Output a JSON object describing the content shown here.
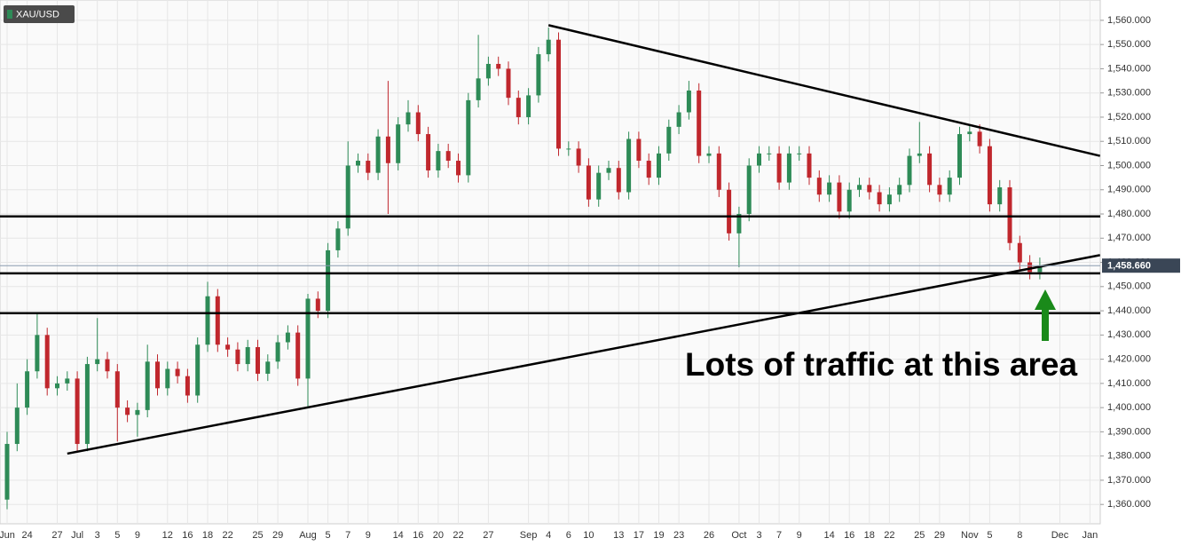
{
  "chart_data": {
    "type": "candlestick",
    "symbol": "XAU/USD",
    "annotation": "Lots of traffic at this area",
    "last_price": 1458.66,
    "last_price_label": "1,458.660",
    "up_color": "#2e8b57",
    "down_color": "#c0272d",
    "grid": true,
    "ylim": [
      1352,
      1568.4
    ],
    "yticks": [
      {
        "value": 1360,
        "label": "1,360.000"
      },
      {
        "value": 1370,
        "label": "1,370.000"
      },
      {
        "value": 1380,
        "label": "1,380.000"
      },
      {
        "value": 1390,
        "label": "1,390.000"
      },
      {
        "value": 1400,
        "label": "1,400.000"
      },
      {
        "value": 1410,
        "label": "1,410.000"
      },
      {
        "value": 1420,
        "label": "1,420.000"
      },
      {
        "value": 1430,
        "label": "1,430.000"
      },
      {
        "value": 1440,
        "label": "1,440.000"
      },
      {
        "value": 1450,
        "label": "1,450.000"
      },
      {
        "value": 1460,
        "label": "1,460.000"
      },
      {
        "value": 1470,
        "label": "1,470.000"
      },
      {
        "value": 1480,
        "label": "1,480.000"
      },
      {
        "value": 1490,
        "label": "1,490.000"
      },
      {
        "value": 1500,
        "label": "1,500.000"
      },
      {
        "value": 1510,
        "label": "1,510.000"
      },
      {
        "value": 1520,
        "label": "1,520.000"
      },
      {
        "value": 1530,
        "label": "1,530.000"
      },
      {
        "value": 1540,
        "label": "1,540.000"
      },
      {
        "value": 1550,
        "label": "1,550.000"
      },
      {
        "value": 1560,
        "label": "1,560.000"
      }
    ],
    "categories": [
      "Jun",
      null,
      "24",
      null,
      null,
      "27",
      null,
      "Jul",
      null,
      "3",
      null,
      "5",
      null,
      "9",
      null,
      null,
      "12",
      null,
      "16",
      null,
      "18",
      null,
      "22",
      null,
      null,
      "25",
      null,
      "29",
      null,
      null,
      "Aug",
      null,
      "5",
      null,
      "7",
      null,
      "9",
      null,
      null,
      "14",
      null,
      "16",
      null,
      "20",
      null,
      "22",
      null,
      null,
      "27",
      null,
      null,
      null,
      "Sep",
      null,
      "4",
      null,
      "6",
      null,
      "10",
      null,
      null,
      "13",
      null,
      "17",
      null,
      "19",
      null,
      "23",
      null,
      null,
      "26",
      null,
      null,
      "Oct",
      null,
      "3",
      null,
      "7",
      null,
      "9",
      null,
      null,
      "14",
      null,
      "16",
      null,
      "18",
      null,
      "22",
      null,
      null,
      "25",
      null,
      "29",
      null,
      null,
      "Nov",
      null,
      "5",
      null,
      null,
      "8",
      null,
      null,
      null,
      "Dec",
      null,
      null,
      "Jan"
    ],
    "open": [
      1362,
      1385,
      1400,
      1415,
      1430,
      1408,
      1410,
      1412,
      1385,
      1418,
      1420,
      1415,
      1400,
      1397,
      1399,
      1419,
      1408,
      1416,
      1413,
      1405,
      1426,
      1446,
      1426,
      1424,
      1418,
      1425,
      1414,
      1419,
      1427,
      1431,
      1412,
      1445,
      1440,
      1465,
      1474,
      1500,
      1502,
      1497,
      1512,
      1501,
      1517,
      1522,
      1513,
      1498,
      1506,
      1502,
      1496,
      1527,
      1536,
      1542,
      1540,
      1528,
      1520,
      1529,
      1546,
      1552,
      1507,
      1507,
      1500,
      1486,
      1497,
      1499,
      1489,
      1511,
      1502,
      1495,
      1505,
      1516,
      1522,
      1531,
      1504,
      1505,
      1490,
      1472,
      1480,
      1500,
      1505,
      1505,
      1493,
      1505,
      1505,
      1495,
      1488,
      1493,
      1481,
      1490,
      1492,
      1489,
      1484,
      1488,
      1492,
      1504,
      1505,
      1492,
      1488,
      1495,
      1513,
      1514,
      1508,
      1484,
      1491,
      1468,
      1460,
      1456,
      null,
      null,
      null,
      null,
      null
    ],
    "high": [
      1390,
      1410,
      1420,
      1439,
      1433,
      1413,
      1415,
      1415,
      1421,
      1437,
      1423,
      1418,
      1403,
      1402,
      1426,
      1422,
      1419,
      1419,
      1416,
      1429,
      1452,
      1449,
      1429,
      1427,
      1428,
      1428,
      1422,
      1430,
      1434,
      1434,
      1447,
      1448,
      1468,
      1477,
      1510,
      1505,
      1505,
      1515,
      1535,
      1520,
      1527,
      1525,
      1516,
      1509,
      1509,
      1505,
      1530,
      1554,
      1545,
      1545,
      1543,
      1531,
      1532,
      1549,
      1557,
      1555,
      1510,
      1510,
      1503,
      1500,
      1502,
      1502,
      1514,
      1514,
      1505,
      1508,
      1519,
      1525,
      1535,
      1534,
      1508,
      1508,
      1493,
      1483,
      1503,
      1508,
      1508,
      1508,
      1508,
      1508,
      1508,
      1498,
      1496,
      1496,
      1493,
      1495,
      1495,
      1492,
      1491,
      1495,
      1507,
      1518,
      1508,
      1495,
      1498,
      1516,
      1517,
      1517,
      1511,
      1494,
      1494,
      1471,
      1463,
      1462,
      null,
      null,
      null,
      null,
      null
    ],
    "low": [
      1358,
      1382,
      1397,
      1412,
      1405,
      1405,
      1407,
      1382,
      1382,
      1415,
      1412,
      1386,
      1394,
      1388,
      1396,
      1405,
      1405,
      1410,
      1402,
      1402,
      1423,
      1423,
      1421,
      1415,
      1415,
      1411,
      1411,
      1416,
      1424,
      1409,
      1400,
      1437,
      1437,
      1462,
      1471,
      1497,
      1494,
      1494,
      1480,
      1498,
      1514,
      1510,
      1495,
      1495,
      1499,
      1493,
      1493,
      1524,
      1533,
      1537,
      1525,
      1517,
      1517,
      1526,
      1543,
      1504,
      1504,
      1497,
      1483,
      1483,
      1494,
      1486,
      1486,
      1499,
      1492,
      1492,
      1502,
      1513,
      1519,
      1501,
      1501,
      1487,
      1469,
      1458,
      1477,
      1497,
      1502,
      1490,
      1490,
      1502,
      1492,
      1485,
      1485,
      1478,
      1478,
      1487,
      1486,
      1481,
      1481,
      1485,
      1489,
      1501,
      1489,
      1485,
      1485,
      1492,
      1510,
      1505,
      1481,
      1481,
      1465,
      1457,
      1453,
      1453,
      null,
      null,
      null,
      null,
      null
    ],
    "close": [
      1385,
      1400,
      1415,
      1430,
      1408,
      1410,
      1412,
      1385,
      1418,
      1420,
      1415,
      1400,
      1397,
      1399,
      1419,
      1408,
      1416,
      1413,
      1405,
      1426,
      1446,
      1426,
      1424,
      1418,
      1425,
      1414,
      1419,
      1427,
      1431,
      1412,
      1445,
      1440,
      1465,
      1474,
      1500,
      1502,
      1497,
      1512,
      1501,
      1517,
      1522,
      1513,
      1498,
      1506,
      1502,
      1496,
      1527,
      1536,
      1542,
      1540,
      1528,
      1520,
      1529,
      1546,
      1552,
      1507,
      1507,
      1500,
      1486,
      1497,
      1499,
      1489,
      1511,
      1502,
      1495,
      1505,
      1516,
      1522,
      1531,
      1504,
      1505,
      1490,
      1472,
      1480,
      1500,
      1505,
      1505,
      1493,
      1505,
      1505,
      1495,
      1488,
      1493,
      1481,
      1490,
      1492,
      1489,
      1484,
      1488,
      1492,
      1504,
      1505,
      1492,
      1488,
      1495,
      1513,
      1514,
      1508,
      1484,
      1491,
      1468,
      1460,
      1456,
      1458.66,
      null,
      null,
      null,
      null,
      null
    ],
    "levels": [
      1479,
      1455.5,
      1439
    ],
    "trendlines": [
      {
        "from": [
          6,
          1381
        ],
        "to": [
          109,
          1463
        ]
      },
      {
        "from": [
          54,
          1558
        ],
        "to": [
          109,
          1504
        ]
      }
    ]
  }
}
